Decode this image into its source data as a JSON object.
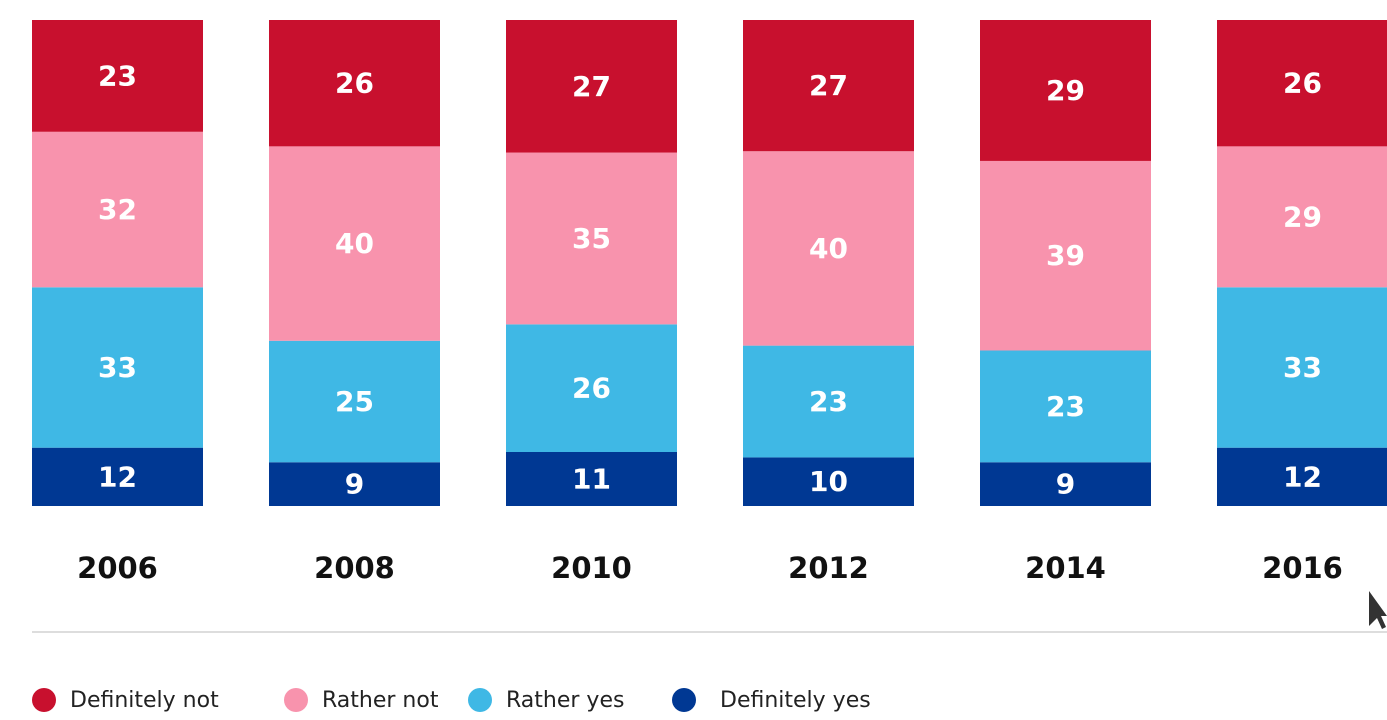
{
  "chart_data": {
    "type": "bar",
    "stacked": true,
    "categories": [
      "2006",
      "2008",
      "2010",
      "2012",
      "2014",
      "2016"
    ],
    "series": [
      {
        "name": "Definitely yes",
        "color": "#003893",
        "values": [
          12,
          9,
          11,
          10,
          9,
          12
        ]
      },
      {
        "name": "Rather yes",
        "color": "#3fb8e5",
        "values": [
          33,
          25,
          26,
          23,
          23,
          33
        ]
      },
      {
        "name": "Rather not",
        "color": "#f893ad",
        "values": [
          32,
          40,
          35,
          40,
          39,
          29
        ]
      },
      {
        "name": "Definitely not",
        "color": "#c8102e",
        "values": [
          23,
          26,
          27,
          27,
          29,
          26
        ]
      }
    ],
    "legend": {
      "position": "bottom-left",
      "order": [
        "Definitely not",
        "Rather not",
        "Rather yes",
        "Definitely yes"
      ]
    },
    "grid": false,
    "title": "",
    "xlabel": "",
    "ylabel": ""
  }
}
